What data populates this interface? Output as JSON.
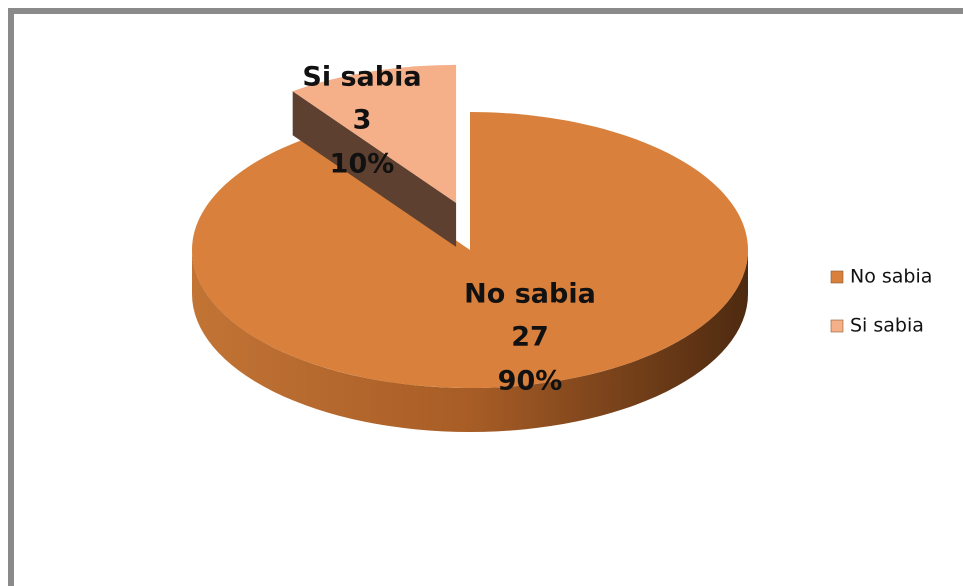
{
  "chart_data": {
    "type": "pie",
    "categories": [
      "No sabia",
      "Si sabia"
    ],
    "values": [
      27,
      3
    ],
    "percent_labels": [
      "90%",
      "10%"
    ],
    "colors": [
      "#d8803c",
      "#f5b08a"
    ],
    "legend": "right"
  }
}
